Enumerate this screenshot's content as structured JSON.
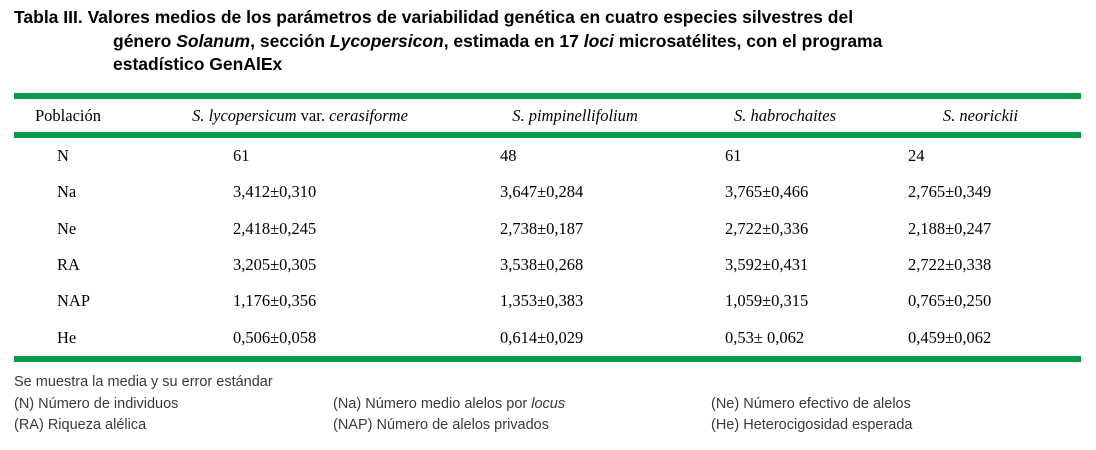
{
  "title": {
    "label": "Tabla III.",
    "segments": [
      {
        "t": " Valores medios de los parámetros de variabilidad genética en cuatro especies silvestres del",
        "i": false
      },
      {
        "br": true
      },
      {
        "t": "género ",
        "i": false
      },
      {
        "t": "Solanum",
        "i": true
      },
      {
        "t": ", sección ",
        "i": false
      },
      {
        "t": "Lycopersicon",
        "i": true
      },
      {
        "t": ", estimada en 17 ",
        "i": false
      },
      {
        "t": "loci",
        "i": true
      },
      {
        "t": " microsatélites, con el programa",
        "i": false
      },
      {
        "br": true
      },
      {
        "t": "estadístico GenAlEx",
        "i": false
      }
    ]
  },
  "table": {
    "header": {
      "population_col": "Población",
      "species": [
        {
          "segments": [
            {
              "t": "S. lycopersicum",
              "i": true
            },
            {
              "t": " var. ",
              "i": false
            },
            {
              "t": "cerasiforme",
              "i": true
            }
          ]
        },
        {
          "segments": [
            {
              "t": "S. pimpinellifolium",
              "i": true
            }
          ]
        },
        {
          "segments": [
            {
              "t": "S. habrochaites",
              "i": true
            }
          ]
        },
        {
          "segments": [
            {
              "t": "S. neorickii",
              "i": true
            }
          ]
        }
      ]
    },
    "rows": [
      {
        "label": "N",
        "values": [
          "61",
          "48",
          "61",
          "24"
        ]
      },
      {
        "label": "Na",
        "values": [
          "3,412±0,310",
          "3,647±0,284",
          "3,765±0,466",
          "2,765±0,349"
        ]
      },
      {
        "label": "Ne",
        "values": [
          "2,418±0,245",
          "2,738±0,187",
          "2,722±0,336",
          "2,188±0,247"
        ]
      },
      {
        "label": "RA",
        "values": [
          "3,205±0,305",
          "3,538±0,268",
          "3,592±0,431",
          "2,722±0,338"
        ]
      },
      {
        "label": "NAP",
        "values": [
          "1,176±0,356",
          "1,353±0,383",
          "1,059±0,315",
          "0,765±0,250"
        ]
      },
      {
        "label": "He",
        "values": [
          "0,506±0,058",
          "0,614±0,029",
          "0,53± 0,062",
          "0,459±0,062"
        ]
      }
    ]
  },
  "footer": {
    "note": "Se muestra la media y su error estándar",
    "legend": [
      [
        [
          {
            "t": "(N) Número de individuos",
            "i": false
          }
        ],
        [
          {
            "t": "(Na) Número medio alelos por ",
            "i": false
          },
          {
            "t": "locus",
            "i": true
          }
        ],
        [
          {
            "t": "(Ne) Número efectivo de alelos",
            "i": false
          }
        ]
      ],
      [
        [
          {
            "t": "(RA) Riqueza alélica",
            "i": false
          }
        ],
        [
          {
            "t": "(NAP) Número de alelos privados",
            "i": false
          }
        ],
        [
          {
            "t": "(He) Heterocigosidad esperada",
            "i": false
          }
        ]
      ]
    ]
  },
  "colors": {
    "rule_green": "#069B4B"
  }
}
